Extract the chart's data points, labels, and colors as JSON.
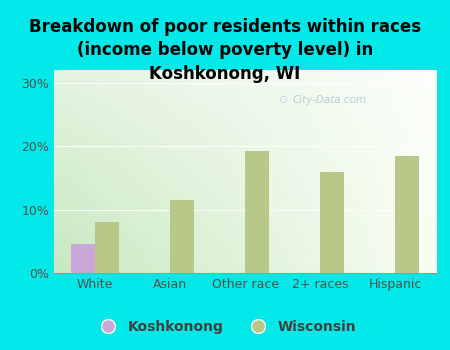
{
  "title": "Breakdown of poor residents within races\n(income below poverty level) in\nKoshkonong, WI",
  "categories": [
    "White",
    "Asian",
    "Other race",
    "2+ races",
    "Hispanic"
  ],
  "koshkonong_values": [
    4.5,
    0,
    0,
    0,
    0
  ],
  "wisconsin_values": [
    8.0,
    11.5,
    19.2,
    16.0,
    18.5
  ],
  "koshkonong_color": "#c8a8d8",
  "wisconsin_color": "#b8c888",
  "background_color": "#00e8e8",
  "plot_bg_left": "#c8e8c0",
  "plot_bg_right": "#f8fef4",
  "yticks": [
    0,
    10,
    20,
    30
  ],
  "ylim": [
    0,
    32
  ],
  "title_fontsize": 12,
  "tick_fontsize": 9,
  "legend_fontsize": 10,
  "bar_width": 0.32,
  "watermark": "City-Data.com"
}
